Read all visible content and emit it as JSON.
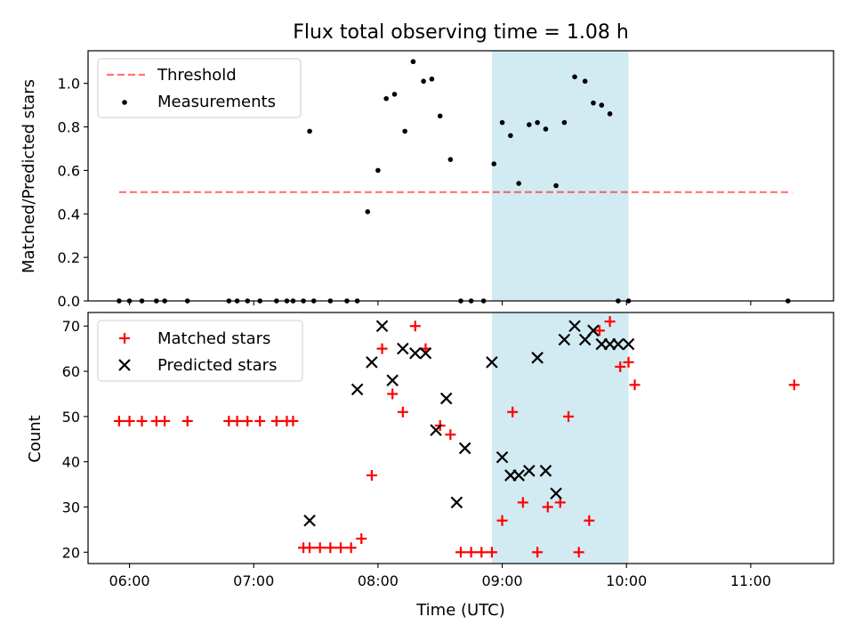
{
  "chart_data": [
    {
      "type": "scatter",
      "title": "Flux total observing time = 1.08 h",
      "xlabel": "",
      "ylabel": "Matched/Predicted stars",
      "xlim": [
        "05:40",
        "11:40"
      ],
      "ylim": [
        0,
        1.15
      ],
      "yticks": [
        0,
        0.2,
        0.4,
        0.6,
        0.8,
        1.0
      ],
      "ytick_labels": [
        "0.0",
        "0.2",
        "0.4",
        "0.6",
        "0.8",
        "1.0"
      ],
      "shaded_region": {
        "from": "08:55",
        "to": "10:01",
        "color": "#add8e6"
      },
      "legend": {
        "placement": "top-left",
        "entries": [
          "Threshold",
          "Measurements"
        ]
      },
      "series": [
        {
          "name": "Threshold",
          "kind": "dashed-line",
          "color": "#ff0000",
          "x": [
            "05:55",
            "11:20"
          ],
          "y": [
            0.5,
            0.5
          ]
        },
        {
          "name": "Measurements",
          "kind": "dot",
          "color": "#000000",
          "x": [
            "05:55",
            "06:00",
            "06:06",
            "06:13",
            "06:17",
            "06:28",
            "06:48",
            "06:52",
            "06:57",
            "07:03",
            "07:11",
            "07:16",
            "07:19",
            "07:24",
            "07:27",
            "07:29",
            "07:37",
            "07:45",
            "07:50",
            "07:55",
            "08:00",
            "08:04",
            "08:08",
            "08:13",
            "08:17",
            "08:22",
            "08:26",
            "08:30",
            "08:35",
            "08:40",
            "08:45",
            "08:51",
            "08:56",
            "09:00",
            "09:04",
            "09:08",
            "09:13",
            "09:17",
            "09:21",
            "09:26",
            "09:30",
            "09:35",
            "09:40",
            "09:44",
            "09:48",
            "09:52",
            "09:56",
            "10:01",
            "11:18"
          ],
          "y": [
            0,
            0,
            0,
            0,
            0,
            0,
            0,
            0,
            0,
            0,
            0,
            0,
            0,
            0,
            0.78,
            0,
            0,
            0,
            0,
            0.41,
            0.6,
            0.93,
            0.95,
            0.78,
            1.1,
            1.01,
            1.02,
            0.85,
            0.65,
            0,
            0,
            0,
            0.63,
            0.82,
            0.76,
            0.54,
            0.81,
            0.82,
            0.79,
            0.53,
            0.82,
            1.03,
            1.01,
            0.91,
            0.9,
            0.86,
            0,
            0,
            0
          ]
        }
      ]
    },
    {
      "type": "scatter",
      "title": "",
      "xlabel": "Time (UTC)",
      "ylabel": "Count",
      "xlim": [
        "05:40",
        "11:40"
      ],
      "ylim": [
        17.5,
        73
      ],
      "xticks": [
        "06:00",
        "07:00",
        "08:00",
        "09:00",
        "10:00",
        "11:00"
      ],
      "yticks": [
        20,
        30,
        40,
        50,
        60,
        70
      ],
      "shaded_region": {
        "from": "08:55",
        "to": "10:01",
        "color": "#add8e6"
      },
      "legend": {
        "placement": "top-left",
        "entries": [
          "Matched stars",
          "Predicted stars"
        ]
      },
      "series": [
        {
          "name": "Matched stars",
          "kind": "plus",
          "color": "#ff0000",
          "x": [
            "05:55",
            "06:00",
            "06:06",
            "06:13",
            "06:17",
            "06:28",
            "06:48",
            "06:52",
            "06:57",
            "07:03",
            "07:11",
            "07:16",
            "07:19",
            "07:24",
            "07:27",
            "07:32",
            "07:37",
            "07:42",
            "07:47",
            "07:52",
            "07:57",
            "08:02",
            "08:07",
            "08:12",
            "08:18",
            "08:23",
            "08:30",
            "08:35",
            "08:40",
            "08:45",
            "08:50",
            "08:55",
            "09:00",
            "09:05",
            "09:10",
            "09:17",
            "09:22",
            "09:28",
            "09:32",
            "09:37",
            "09:42",
            "09:47",
            "09:52",
            "09:57",
            "10:01",
            "10:04",
            "11:21"
          ],
          "y": [
            49,
            49,
            49,
            49,
            49,
            49,
            49,
            49,
            49,
            49,
            49,
            49,
            49,
            21,
            21,
            21,
            21,
            21,
            21,
            23,
            37,
            65,
            55,
            51,
            70,
            65,
            48,
            46,
            20,
            20,
            20,
            20,
            27,
            51,
            31,
            20,
            30,
            31,
            50,
            20,
            27,
            69,
            71,
            61,
            62,
            57,
            57
          ]
        },
        {
          "name": "Predicted stars",
          "kind": "x",
          "color": "#000000",
          "x": [
            "07:27",
            "07:50",
            "07:57",
            "08:02",
            "08:07",
            "08:12",
            "08:18",
            "08:23",
            "08:28",
            "08:33",
            "08:38",
            "08:42",
            "08:55",
            "09:00",
            "09:04",
            "09:08",
            "09:13",
            "09:17",
            "09:21",
            "09:26",
            "09:30",
            "09:35",
            "09:40",
            "09:44",
            "09:48",
            "09:52",
            "09:56",
            "10:01"
          ],
          "y": [
            27,
            56,
            62,
            70,
            58,
            65,
            64,
            64,
            47,
            54,
            31,
            43,
            62,
            41,
            37,
            37,
            38,
            63,
            38,
            33,
            67,
            70,
            67,
            69,
            66,
            66,
            66,
            66
          ]
        }
      ]
    }
  ]
}
